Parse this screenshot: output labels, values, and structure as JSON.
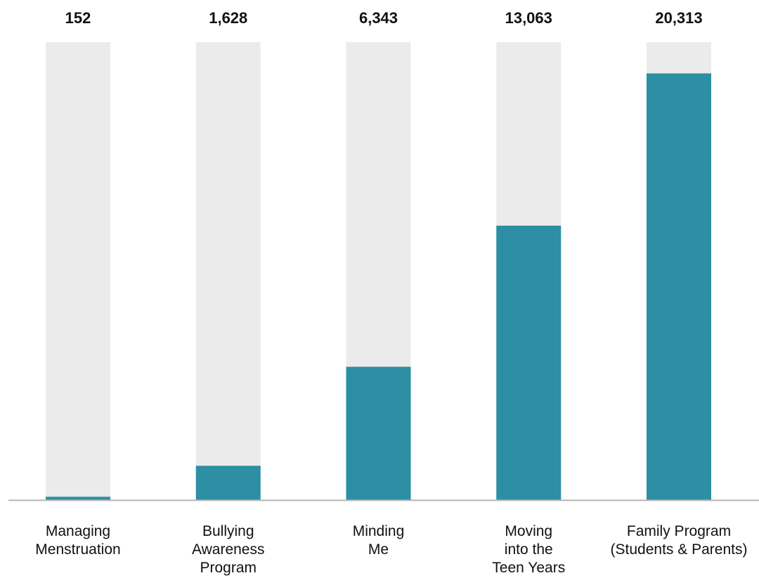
{
  "chart_data": {
    "type": "bar",
    "categories": [
      [
        "Managing",
        "Menstruation"
      ],
      [
        "Bullying",
        "Awareness",
        "Program"
      ],
      [
        "Minding",
        "Me"
      ],
      [
        "Moving",
        "into the",
        "Teen Years"
      ],
      [
        "Family Program",
        "(Students & Parents)"
      ]
    ],
    "values": [
      152,
      1628,
      6343,
      13063,
      20313
    ],
    "value_labels": [
      "152",
      "1,628",
      "6,343",
      "13,063",
      "20,313"
    ],
    "ylim": [
      0,
      21800
    ],
    "grid": false,
    "legend": "none",
    "colors": {
      "bar": "#2d8fa3",
      "track": "#ebebeb",
      "axis": "#b5b5b5",
      "text": "#111111"
    }
  }
}
